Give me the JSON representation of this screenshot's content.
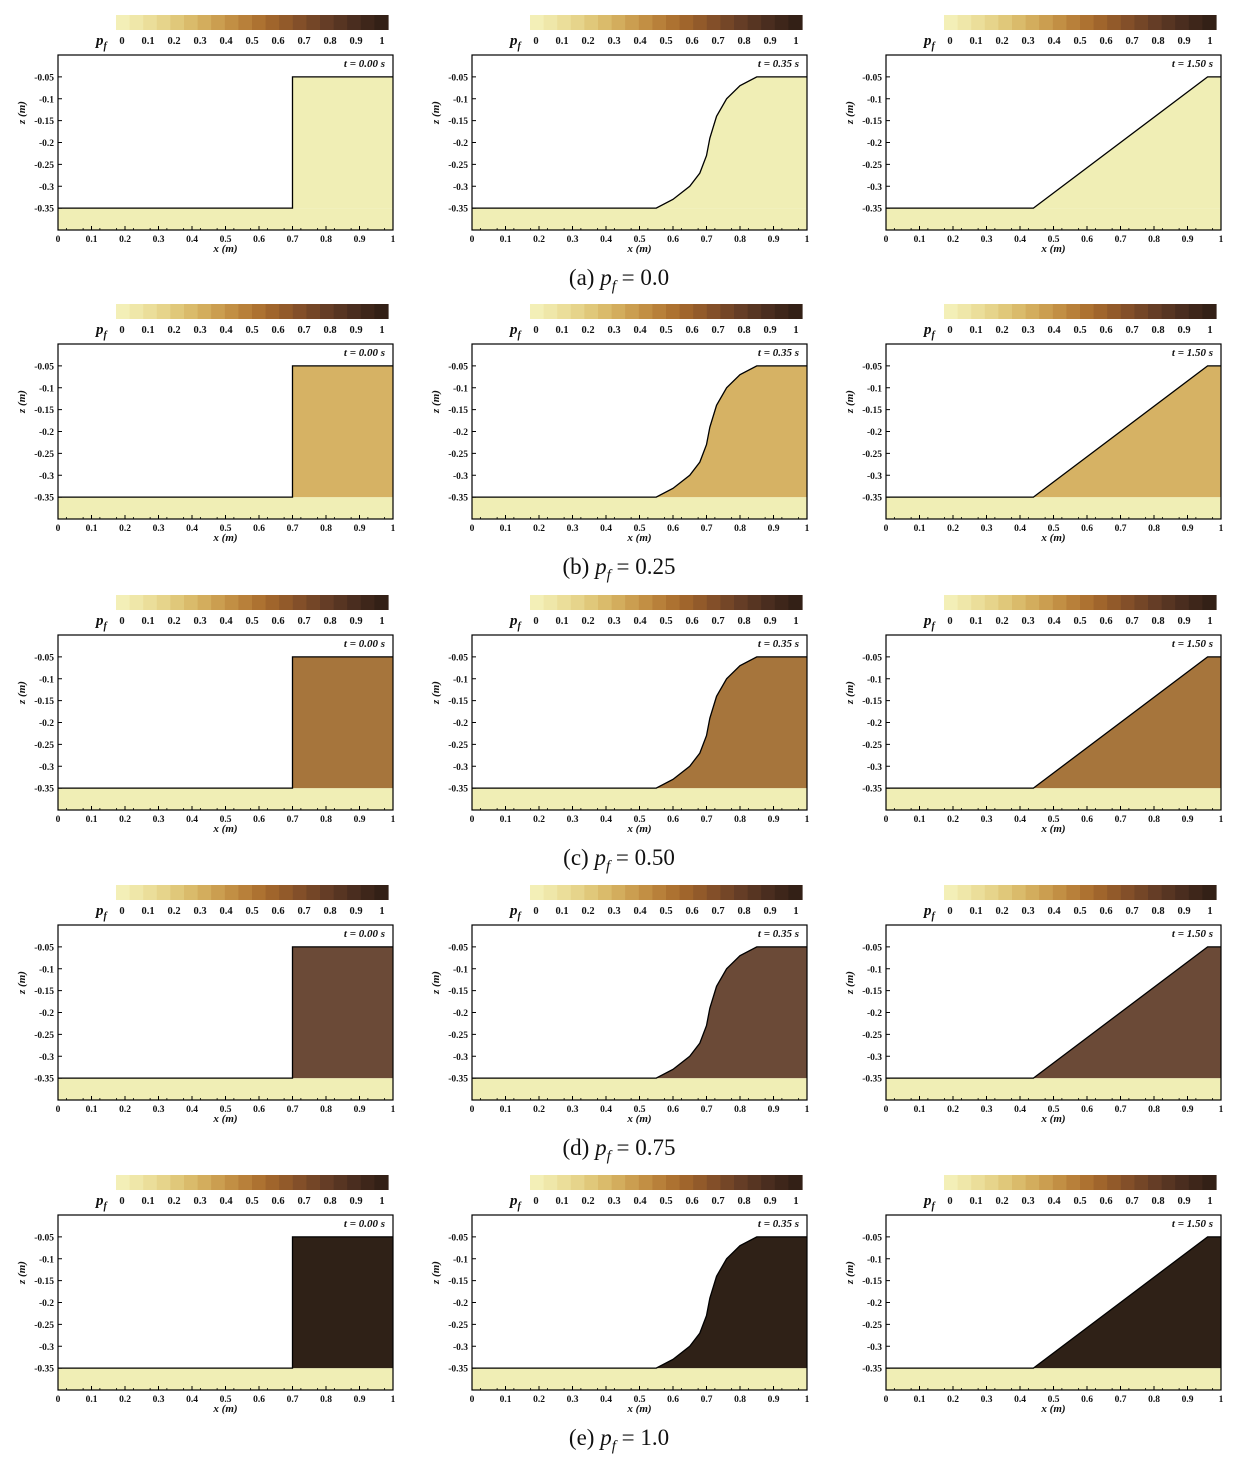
{
  "figure": {
    "colorbar": {
      "label": "p",
      "label_sub": "f",
      "ticks": [
        "0",
        "0.1",
        "0.2",
        "0.3",
        "0.4",
        "0.5",
        "0.6",
        "0.7",
        "0.8",
        "0.9",
        "1"
      ],
      "colors": [
        "#f3efb7",
        "#efe7a9",
        "#ebde9a",
        "#e6d48b",
        "#e0c87a",
        "#dabb6b",
        "#d3ad5d",
        "#cb9e50",
        "#c28f44",
        "#b8803a",
        "#ad7231",
        "#a0652c",
        "#925a2a",
        "#834f29",
        "#744627",
        "#653d26",
        "#573522",
        "#4a2d1f",
        "#3e261a",
        "#332016"
      ]
    },
    "rows": [
      {
        "caption_label": "(a)",
        "caption_math": "p",
        "caption_sub": "f",
        "caption_value": "= 0.0",
        "fill_color": "#f0eeb5"
      },
      {
        "caption_label": "(b)",
        "caption_math": "p",
        "caption_sub": "f",
        "caption_value": "= 0.25",
        "fill_color": "#d6b264"
      },
      {
        "caption_label": "(c)",
        "caption_math": "p",
        "caption_sub": "f",
        "caption_value": "= 0.50",
        "fill_color": "#a6753c"
      },
      {
        "caption_label": "(d)",
        "caption_math": "p",
        "caption_sub": "f",
        "caption_value": "= 0.75",
        "fill_color": "#6b4a37"
      },
      {
        "caption_label": "(e)",
        "caption_math": "p",
        "caption_sub": "f",
        "caption_value": "= 1.0",
        "fill_color": "#2f2117"
      }
    ],
    "columns": [
      {
        "time_label": "t = 0.00 s"
      },
      {
        "time_label": "t = 0.35 s"
      },
      {
        "time_label": "t = 1.50 s"
      }
    ]
  },
  "chart_data": {
    "type": "area",
    "xlabel": "x (m)",
    "ylabel": "z (m)",
    "xlim": [
      0,
      1
    ],
    "ylim": [
      -0.4,
      0
    ],
    "xticks": [
      "0",
      "0.1",
      "0.2",
      "0.3",
      "0.4",
      "0.5",
      "0.6",
      "0.7",
      "0.8",
      "0.9",
      "1"
    ],
    "yticks": [
      "-0.05",
      "-0.1",
      "-0.15",
      "-0.2",
      "-0.25",
      "-0.3",
      "-0.35"
    ],
    "ytick_values": [
      -0.05,
      -0.1,
      -0.15,
      -0.2,
      -0.25,
      -0.3,
      -0.35
    ],
    "bed_level": -0.35,
    "bed_color": "#f0eeb5",
    "grid": false,
    "profiles": [
      {
        "time": "t = 0.00 s",
        "x": [
          0.7,
          0.7,
          1.0
        ],
        "z": [
          -0.35,
          -0.05,
          -0.05
        ]
      },
      {
        "time": "t = 0.35 s",
        "x": [
          0.55,
          0.6,
          0.65,
          0.68,
          0.7,
          0.71,
          0.73,
          0.76,
          0.8,
          0.85,
          1.0
        ],
        "z": [
          -0.35,
          -0.33,
          -0.3,
          -0.27,
          -0.23,
          -0.19,
          -0.14,
          -0.1,
          -0.07,
          -0.05,
          -0.05
        ]
      },
      {
        "time": "t = 1.50 s",
        "x": [
          0.44,
          0.96,
          1.0
        ],
        "z": [
          -0.35,
          -0.05,
          -0.05
        ]
      }
    ]
  }
}
